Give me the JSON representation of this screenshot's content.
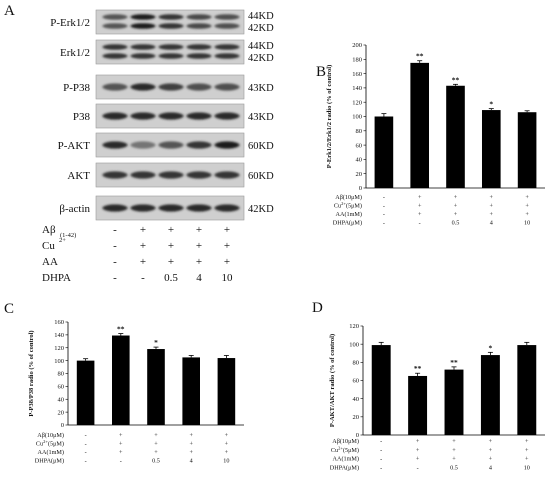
{
  "panel_letters": [
    "A",
    "B",
    "C",
    "D"
  ],
  "blot": {
    "rows": [
      {
        "label": "P-Erk1/2",
        "sizes": [
          "44KD",
          "42KD"
        ],
        "bands": 2,
        "intensity": [
          [
            0.7,
            0.95,
            0.85,
            0.75,
            0.72
          ],
          [
            0.7,
            0.95,
            0.85,
            0.75,
            0.72
          ]
        ]
      },
      {
        "label": "Erk1/2",
        "sizes": [
          "44KD",
          "42KD"
        ],
        "bands": 2,
        "intensity": [
          [
            0.85,
            0.85,
            0.85,
            0.85,
            0.85
          ],
          [
            0.85,
            0.85,
            0.85,
            0.85,
            0.85
          ]
        ]
      },
      {
        "label": "P-P38",
        "sizes": [
          "43KD"
        ],
        "bands": 1,
        "intensity": [
          [
            0.7,
            0.9,
            0.8,
            0.72,
            0.72
          ]
        ]
      },
      {
        "label": "P38",
        "sizes": [
          "43KD"
        ],
        "bands": 1,
        "intensity": [
          [
            0.9,
            0.9,
            0.9,
            0.9,
            0.9
          ]
        ]
      },
      {
        "label": "P-AKT",
        "sizes": [
          "60KD"
        ],
        "bands": 1,
        "intensity": [
          [
            0.9,
            0.55,
            0.7,
            0.85,
            0.95
          ]
        ]
      },
      {
        "label": "AKT",
        "sizes": [
          "60KD"
        ],
        "bands": 1,
        "intensity": [
          [
            0.85,
            0.85,
            0.85,
            0.85,
            0.85
          ]
        ]
      },
      {
        "label": "β-actin",
        "sizes": [
          "42KD"
        ],
        "bands": 1,
        "intensity": [
          [
            0.9,
            0.9,
            0.9,
            0.9,
            0.9
          ]
        ]
      }
    ],
    "treatments": {
      "labels": [
        "Aβ",
        "(1-42)",
        "Cu",
        "2+",
        "AA",
        "DHPA"
      ],
      "rows": [
        [
          "-",
          "+",
          "+",
          "+",
          "+"
        ],
        [
          "-",
          "+",
          "+",
          "+",
          "+"
        ],
        [
          "-",
          "+",
          "+",
          "+",
          "+"
        ],
        [
          "-",
          "-",
          "0.5",
          "4",
          "10"
        ]
      ]
    }
  },
  "chart_data": [
    {
      "type": "bar",
      "panel": "B",
      "ylabel": "P-Erk1/2/Erk1/2 radio (% of control)",
      "ylim": [
        0,
        200
      ],
      "yticks": [
        "0",
        "20",
        "40",
        "60",
        "80",
        "100",
        "120",
        "140",
        "160",
        "180",
        "200"
      ],
      "values": [
        100,
        175,
        143,
        109,
        106
      ],
      "errors": [
        4,
        3,
        2,
        2,
        2
      ],
      "significance": [
        "",
        "**",
        "**",
        "*",
        ""
      ],
      "conditions": {
        "labels": [
          "Aβ(10μM)",
          "Cu2+(5μM)",
          "AA(1mM)",
          "DHPA(μM)"
        ],
        "rows": [
          [
            "-",
            "+",
            "+",
            "+",
            "+"
          ],
          [
            "-",
            "+",
            "+",
            "+",
            "+"
          ],
          [
            "-",
            "+",
            "+",
            "+",
            "+"
          ],
          [
            "-",
            "-",
            "0.5",
            "4",
            "10"
          ]
        ]
      }
    },
    {
      "type": "bar",
      "panel": "C",
      "ylabel": "P-P38/P38 radio (% of control)",
      "ylim": [
        0,
        160
      ],
      "yticks": [
        "0",
        "20",
        "40",
        "60",
        "80",
        "100",
        "120",
        "140",
        "160"
      ],
      "values": [
        100,
        139,
        118,
        105,
        104
      ],
      "errors": [
        3,
        3,
        3,
        3,
        4
      ],
      "significance": [
        "",
        "**",
        "*",
        "",
        ""
      ],
      "conditions": {
        "labels": [
          "Aβ(10μM)",
          "Cu2+(5μM)",
          "AA(1mM)",
          "DHPA(μM)"
        ],
        "rows": [
          [
            "-",
            "+",
            "+",
            "+",
            "+"
          ],
          [
            "-",
            "+",
            "+",
            "+",
            "+"
          ],
          [
            "-",
            "+",
            "+",
            "+",
            "+"
          ],
          [
            "-",
            "-",
            "0.5",
            "4",
            "10"
          ]
        ]
      }
    },
    {
      "type": "bar",
      "panel": "D",
      "ylabel": "P-AKT/AKT radio (% of control)",
      "ylim": [
        0,
        120
      ],
      "yticks": [
        "0",
        "20",
        "40",
        "60",
        "80",
        "100",
        "120"
      ],
      "values": [
        99,
        65,
        72,
        88,
        99
      ],
      "errors": [
        3,
        3,
        3,
        3,
        3
      ],
      "significance": [
        "",
        "**",
        "**",
        "*",
        ""
      ],
      "conditions": {
        "labels": [
          "Aβ(10μM)",
          "Cu2+(5μM)",
          "AA(1mM)",
          "DHPA(μM)"
        ],
        "rows": [
          [
            "-",
            "+",
            "+",
            "+",
            "+"
          ],
          [
            "-",
            "+",
            "+",
            "+",
            "+"
          ],
          [
            "-",
            "+",
            "+",
            "+",
            "+"
          ],
          [
            "-",
            "-",
            "0.5",
            "4",
            "10"
          ]
        ]
      }
    }
  ]
}
